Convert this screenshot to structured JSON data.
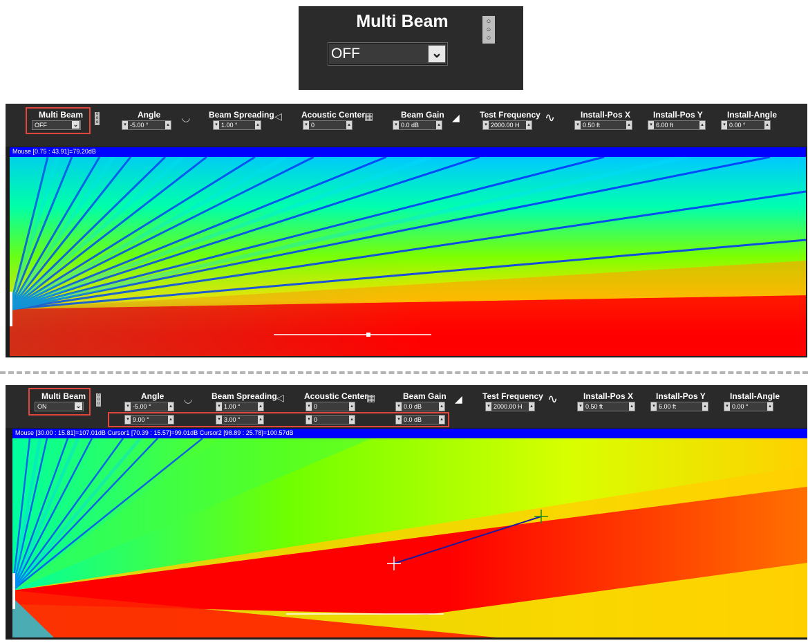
{
  "zoom": {
    "title": "Multi Beam",
    "value": "OFF"
  },
  "top": {
    "multi_beam": {
      "label": "Multi Beam",
      "value": "OFF"
    },
    "angle": {
      "label": "Angle",
      "value": "-5.00 °"
    },
    "beam_spreading": {
      "label": "Beam Spreading",
      "value": "1.00 °"
    },
    "acoustic_center": {
      "label": "Acoustic Center",
      "value": "0"
    },
    "beam_gain": {
      "label": "Beam Gain",
      "value": "0.0 dB"
    },
    "test_frequency": {
      "label": "Test Frequency",
      "value": "2000.00 H"
    },
    "install_pos_x": {
      "label": "Install-Pos X",
      "value": "0.50 ft"
    },
    "install_pos_y": {
      "label": "Install-Pos Y",
      "value": "6.00 ft"
    },
    "install_angle": {
      "label": "Install-Angle",
      "value": "0.00 °"
    },
    "status": "Mouse [0.75 : 43.91]=79.20dB"
  },
  "bottom": {
    "multi_beam": {
      "label": "Multi Beam",
      "value": "ON"
    },
    "angle": {
      "label": "Angle",
      "value": "-5.00 °",
      "value2": "9.00 °"
    },
    "beam_spreading": {
      "label": "Beam Spreading",
      "value": "1.00 °",
      "value2": "3.00 °"
    },
    "acoustic_center": {
      "label": "Acoustic Center",
      "value": "0",
      "value2": "0"
    },
    "beam_gain": {
      "label": "Beam Gain",
      "value": "0.0 dB",
      "value2": "0.0 dB"
    },
    "test_frequency": {
      "label": "Test Frequency",
      "value": "2000.00 H"
    },
    "install_pos_x": {
      "label": "Install-Pos X",
      "value": "0.50 ft"
    },
    "install_pos_y": {
      "label": "Install-Pos Y",
      "value": "6.00 ft"
    },
    "install_angle": {
      "label": "Install-Angle",
      "value": "0.00 °"
    },
    "status": "Mouse [30.00 : 15.81]=107.01dB  Cursor1 [70.39 : 15.57]=99.01dB  Cursor2 [98.89 : 25.78]=100.57dB"
  },
  "colors": {
    "status_bar": "#0000ff",
    "highlight": "#e0463e",
    "toolbar": "#2a2a2a"
  }
}
